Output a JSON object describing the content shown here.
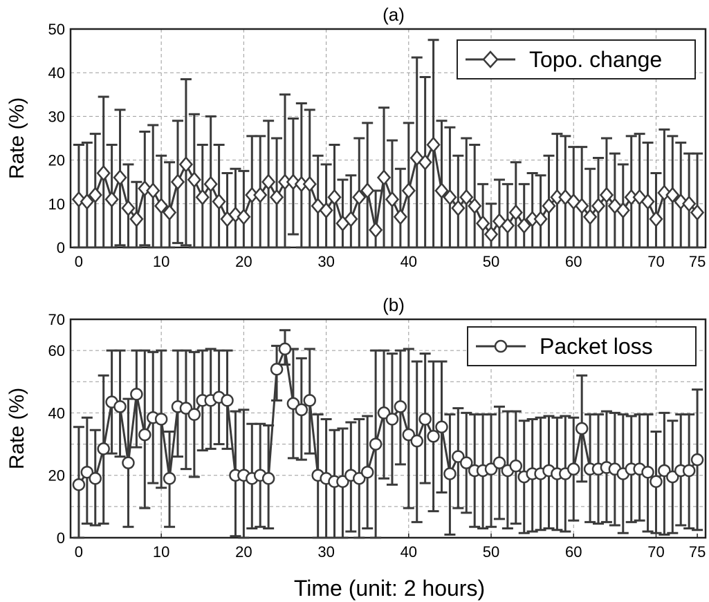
{
  "figure": {
    "xlabel": "Time (unit: 2 hours)"
  },
  "chart_data": [
    {
      "type": "line",
      "title": "(a)",
      "ylabel": "Rate (%)",
      "xlabel": "Time (unit: 2 hours)",
      "xlim": [
        -1,
        76
      ],
      "ylim": [
        0,
        50
      ],
      "xticks": [
        0,
        10,
        20,
        30,
        40,
        50,
        60,
        70,
        75
      ],
      "yticks": [
        0,
        10,
        20,
        30,
        40,
        50
      ],
      "grid": true,
      "legend_position": "top-right",
      "marker": "diamond",
      "series": [
        {
          "name": "Topo. change",
          "x": [
            0,
            1,
            2,
            3,
            4,
            5,
            6,
            7,
            8,
            9,
            10,
            11,
            12,
            13,
            14,
            15,
            16,
            17,
            18,
            19,
            20,
            21,
            22,
            23,
            24,
            25,
            26,
            27,
            28,
            29,
            30,
            31,
            32,
            33,
            34,
            35,
            36,
            37,
            38,
            39,
            40,
            41,
            42,
            43,
            44,
            45,
            46,
            47,
            48,
            49,
            50,
            51,
            52,
            53,
            54,
            55,
            56,
            57,
            58,
            59,
            60,
            61,
            62,
            63,
            64,
            65,
            66,
            67,
            68,
            69,
            70,
            71,
            72,
            73,
            74,
            75
          ],
          "y": [
            11,
            10.5,
            12,
            17,
            11,
            16,
            9,
            6.5,
            13.5,
            13,
            9.5,
            8,
            15,
            19,
            15.5,
            11.5,
            14.5,
            10.5,
            6.5,
            7.5,
            7,
            12,
            12,
            15,
            11.5,
            15,
            15,
            14.5,
            14.5,
            9.5,
            8.5,
            11.5,
            5.5,
            6.5,
            11.5,
            13,
            4,
            16,
            11,
            7,
            13,
            20.5,
            19.5,
            23.5,
            13,
            11.5,
            9,
            11.5,
            9.5,
            5.5,
            3,
            6,
            5,
            8,
            5,
            6.5,
            6.5,
            9.5,
            11.5,
            11.5,
            10.5,
            9.5,
            7,
            9.5,
            12,
            9.5,
            8.5,
            11.5,
            11.5,
            10.5,
            6.5,
            12.5,
            12,
            10.5,
            10,
            8
          ],
          "upper": [
            23.5,
            24,
            26,
            34.5,
            23.5,
            31.5,
            19,
            15,
            26.5,
            28,
            21,
            19.5,
            29,
            38.5,
            30.5,
            23.5,
            30,
            23.5,
            17,
            18,
            17.5,
            25.5,
            25.5,
            29,
            25,
            35,
            29.5,
            33,
            31.5,
            21,
            19,
            23.5,
            15.5,
            16.5,
            25,
            28.5,
            13,
            32,
            24.5,
            18,
            28.5,
            43.5,
            39,
            47.5,
            29,
            27.5,
            21,
            25,
            23.5,
            14.5,
            10,
            15.5,
            14.5,
            19.5,
            14.5,
            17,
            16.5,
            21,
            26,
            25.5,
            23,
            23,
            18,
            20.5,
            25,
            21.5,
            19,
            25.5,
            26,
            24,
            17,
            27,
            25.5,
            24,
            21.5,
            21.5
          ],
          "lower": [
            0,
            0,
            0,
            0,
            0,
            0.5,
            0,
            0,
            0.5,
            0,
            0,
            0,
            1,
            0.5,
            0,
            0,
            0,
            0,
            0,
            0,
            0,
            0,
            0,
            0,
            0,
            0,
            3,
            0,
            0,
            0,
            0,
            0,
            0,
            0,
            0,
            0,
            0,
            0,
            0,
            0,
            0,
            0,
            0,
            0,
            0,
            0,
            0,
            0,
            0,
            0,
            0,
            0,
            0,
            0,
            0,
            0,
            0,
            0,
            0,
            0,
            0,
            0,
            0,
            0,
            0,
            0,
            0,
            0,
            0,
            0,
            0,
            0,
            0,
            0,
            0,
            0
          ]
        }
      ]
    },
    {
      "type": "line",
      "title": "(b)",
      "ylabel": "Rate (%)",
      "xlabel": "Time (unit: 2 hours)",
      "xlim": [
        -1,
        76
      ],
      "ylim": [
        0,
        70
      ],
      "xticks": [
        0,
        10,
        20,
        30,
        40,
        50,
        60,
        70,
        75
      ],
      "yticks": [
        0,
        20,
        40,
        60
      ],
      "ytick_labels_extra": [
        70
      ],
      "grid": true,
      "legend_position": "top-right",
      "marker": "circle",
      "series": [
        {
          "name": "Packet loss",
          "x": [
            0,
            1,
            2,
            3,
            4,
            5,
            6,
            7,
            8,
            9,
            10,
            11,
            12,
            13,
            14,
            15,
            16,
            17,
            18,
            19,
            20,
            21,
            22,
            23,
            24,
            25,
            26,
            27,
            28,
            29,
            30,
            31,
            32,
            33,
            34,
            35,
            36,
            37,
            38,
            39,
            40,
            41,
            42,
            43,
            44,
            45,
            46,
            47,
            48,
            49,
            50,
            51,
            52,
            53,
            54,
            55,
            56,
            57,
            58,
            59,
            60,
            61,
            62,
            63,
            64,
            65,
            66,
            67,
            68,
            69,
            70,
            71,
            72,
            73,
            74,
            75
          ],
          "y": [
            17,
            21,
            19,
            28.5,
            43.5,
            42,
            24,
            46,
            33,
            38.5,
            38,
            19,
            42,
            41.5,
            39.5,
            44,
            44,
            45,
            44,
            20,
            20,
            19,
            20,
            19,
            54,
            60.5,
            43,
            41,
            44,
            20,
            19,
            18,
            18,
            20,
            19,
            21,
            30,
            40,
            38,
            42,
            33,
            31,
            38,
            32.5,
            35.5,
            20.5,
            26,
            24,
            21.5,
            21.5,
            22,
            24,
            21.5,
            23,
            19.5,
            20.5,
            20.5,
            21.5,
            20.5,
            20.5,
            22,
            35,
            22,
            22,
            22.5,
            22,
            20.5,
            22,
            22,
            21,
            18,
            21.5,
            19.5,
            21.5,
            21.5,
            25
          ],
          "upper": [
            35.5,
            38.5,
            34.5,
            52,
            60,
            60,
            44.5,
            60,
            60,
            59.5,
            60,
            34,
            60,
            60,
            59.5,
            60,
            60.5,
            60,
            60,
            40.5,
            41,
            36.5,
            36.5,
            36,
            61.5,
            66.5,
            60.5,
            57.5,
            60.5,
            39.5,
            38,
            34.5,
            35,
            37,
            38,
            39,
            60,
            60,
            59,
            60,
            60.5,
            56.5,
            59,
            56.5,
            56.5,
            39.5,
            41.5,
            40,
            39.5,
            39.5,
            39.5,
            42,
            40.5,
            40.5,
            37.5,
            38,
            38.5,
            39,
            38.5,
            39,
            38.5,
            52,
            39.5,
            39.5,
            40.5,
            40,
            39.5,
            39,
            39.5,
            39.5,
            34,
            40,
            37.5,
            39.5,
            39.5,
            47.5
          ],
          "lower": [
            0,
            4.5,
            4,
            4.5,
            27,
            26,
            3.5,
            29,
            9.5,
            17.5,
            16,
            3.5,
            26,
            22,
            19.5,
            28,
            28.5,
            30,
            28.5,
            0.5,
            0,
            3,
            3.5,
            3,
            44,
            55.5,
            25.5,
            25,
            27,
            0,
            0,
            0,
            0,
            2,
            0,
            3,
            0,
            19,
            17,
            23.5,
            9.5,
            5,
            17.5,
            8.5,
            14.5,
            1,
            9.5,
            8,
            3.5,
            3,
            3.5,
            6,
            3,
            4.5,
            1.5,
            2,
            2.5,
            3,
            2.5,
            2,
            5.5,
            18,
            5,
            4.5,
            5,
            4,
            1.5,
            5,
            5.5,
            2,
            1.5,
            1,
            1.5,
            4,
            3,
            2.5
          ]
        }
      ]
    }
  ]
}
